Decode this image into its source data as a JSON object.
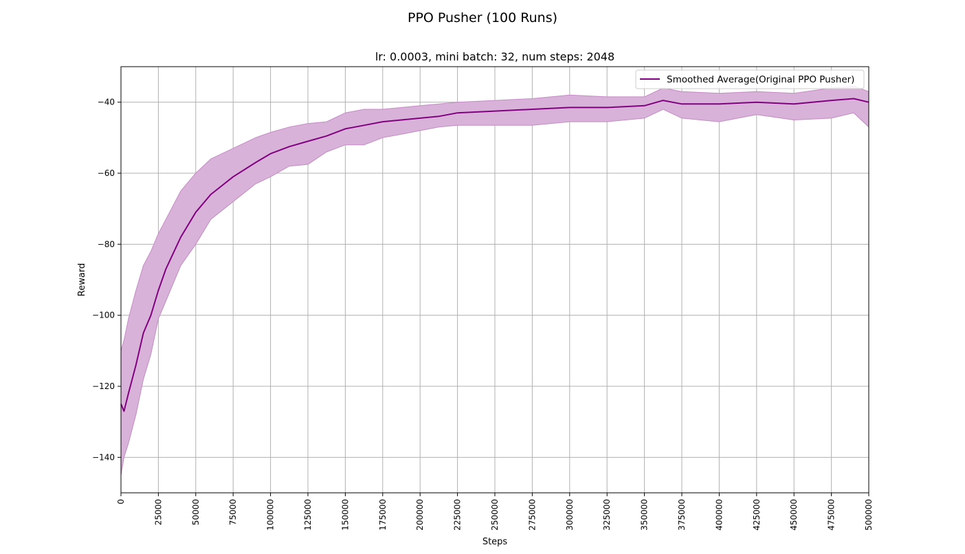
{
  "chart_data": {
    "type": "line",
    "suptitle": "PPO Pusher (100 Runs)",
    "title": "lr: 0.0003, mini batch: 32, num steps: 2048",
    "xlabel": "Steps",
    "ylabel": "Reward",
    "xlim": [
      0,
      500000
    ],
    "ylim": [
      -150,
      -30
    ],
    "xticks": [
      0,
      25000,
      50000,
      75000,
      100000,
      125000,
      150000,
      175000,
      200000,
      225000,
      250000,
      275000,
      300000,
      325000,
      350000,
      375000,
      400000,
      425000,
      450000,
      475000,
      500000
    ],
    "yticks": [
      -140,
      -120,
      -100,
      -80,
      -60,
      -40
    ],
    "grid": true,
    "legend_position": "top-right",
    "colors": {
      "line": "#800080",
      "band": "#d8b2d8",
      "band_edge": "#c48ac4",
      "grid": "#b0b0b0"
    },
    "series": [
      {
        "name": "Smoothed Average(Original PPO Pusher)",
        "x": [
          0,
          2000,
          5000,
          10000,
          15000,
          20000,
          25000,
          30000,
          40000,
          50000,
          60000,
          75000,
          90000,
          100000,
          112500,
          125000,
          137500,
          150000,
          162500,
          175000,
          187500,
          200000,
          212500,
          225000,
          250000,
          275000,
          300000,
          325000,
          350000,
          362500,
          375000,
          400000,
          425000,
          450000,
          475000,
          490000,
          500000
        ],
        "y": [
          -125,
          -127,
          -122,
          -114,
          -105,
          -100,
          -93,
          -87,
          -78,
          -71,
          -66,
          -61,
          -57,
          -54.5,
          -52.5,
          -51,
          -49.5,
          -47.5,
          -46.5,
          -45.5,
          -45,
          -44.5,
          -44,
          -43,
          -42.5,
          -42,
          -41.5,
          -41.5,
          -41,
          -39.5,
          -40.5,
          -40.5,
          -40,
          -40.5,
          -39.5,
          -39,
          -40
        ],
        "band_upper": [
          -110,
          -107,
          -101,
          -93,
          -86,
          -82,
          -77,
          -73,
          -65,
          -60,
          -56,
          -53,
          -50,
          -48.5,
          -47,
          -46,
          -45.5,
          -43,
          -42,
          -42,
          -41.5,
          -41,
          -40.5,
          -40,
          -39.5,
          -39,
          -38,
          -38.5,
          -38.5,
          -36,
          -37,
          -37.5,
          -37,
          -37.5,
          -36,
          -35.5,
          -37
        ],
        "band_lower": [
          -145,
          -140,
          -136,
          -128,
          -118,
          -111,
          -101,
          -96,
          -86,
          -80,
          -73,
          -68,
          -63,
          -61,
          -58,
          -57.5,
          -54,
          -52,
          -52,
          -50,
          -49,
          -48,
          -47,
          -46.5,
          -46.5,
          -46.5,
          -45.5,
          -45.5,
          -44.5,
          -42,
          -44.5,
          -45.5,
          -43.5,
          -45,
          -44.5,
          -43,
          -47
        ]
      }
    ]
  }
}
